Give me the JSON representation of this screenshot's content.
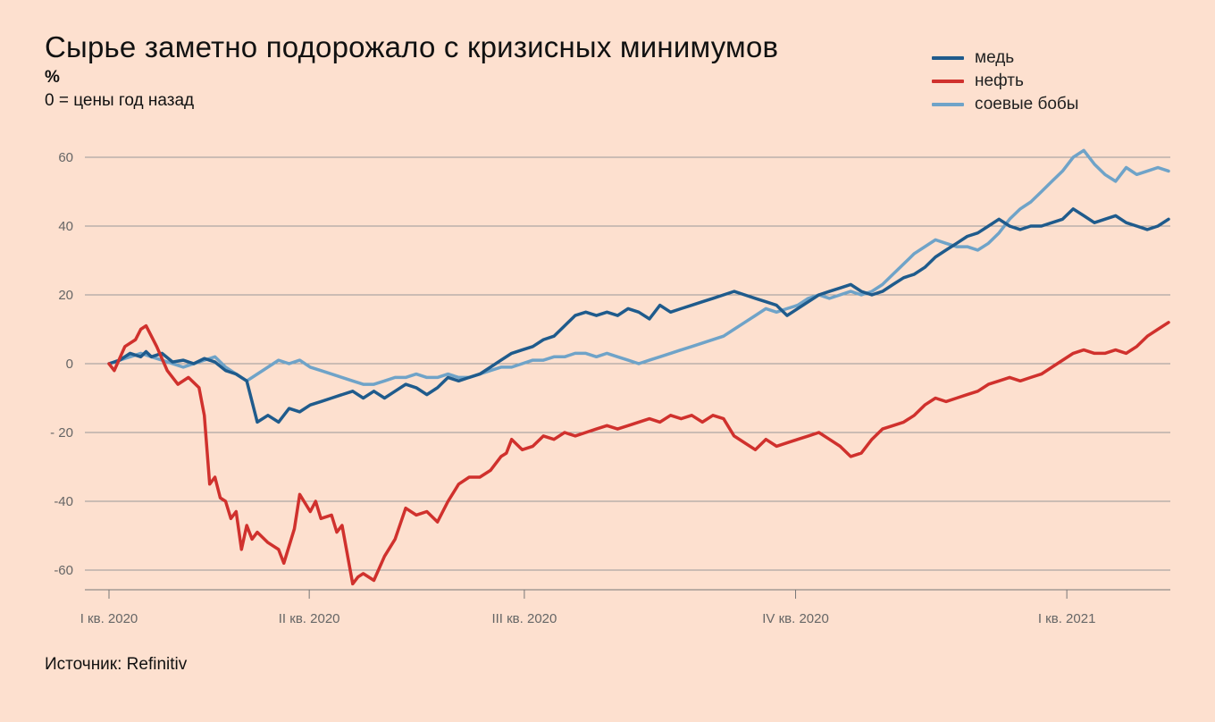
{
  "header": {
    "title": "Сырье заметно подорожало с кризисных минимумов",
    "unit": "%",
    "subtitle": "0 = цены год назад"
  },
  "footer": {
    "source": "Источник: Refinitiv"
  },
  "chart_data": {
    "type": "line",
    "title": "Сырье заметно подорожало с кризисных минимумов",
    "ylabel": "%",
    "ylim": [
      -67,
      68
    ],
    "yticks": [
      60,
      40,
      20,
      0,
      -20,
      -40,
      -60
    ],
    "ytick_labels": [
      "60",
      "40",
      "20",
      "0",
      "- 20",
      "-40",
      "-60"
    ],
    "xlim": [
      0,
      1.0
    ],
    "xticks": [
      {
        "x": 0.0,
        "label": "I кв. 2020"
      },
      {
        "x": 0.189,
        "label": "II кв. 2020"
      },
      {
        "x": 0.392,
        "label": "III кв. 2020"
      },
      {
        "x": 0.648,
        "label": "IV кв. 2020"
      },
      {
        "x": 0.904,
        "label": "I кв. 2021"
      }
    ],
    "grid": true,
    "legend": "top-right",
    "series": [
      {
        "name": "медь",
        "color": "#1f5b8c",
        "points": [
          [
            0,
            0
          ],
          [
            0.01,
            1
          ],
          [
            0.02,
            3
          ],
          [
            0.03,
            2
          ],
          [
            0.035,
            3.5
          ],
          [
            0.04,
            2
          ],
          [
            0.05,
            3
          ],
          [
            0.06,
            0.5
          ],
          [
            0.07,
            1
          ],
          [
            0.08,
            0
          ],
          [
            0.09,
            1.5
          ],
          [
            0.1,
            0.5
          ],
          [
            0.11,
            -2
          ],
          [
            0.12,
            -3
          ],
          [
            0.13,
            -5
          ],
          [
            0.14,
            -17
          ],
          [
            0.15,
            -15
          ],
          [
            0.16,
            -17
          ],
          [
            0.17,
            -13
          ],
          [
            0.18,
            -14
          ],
          [
            0.19,
            -12
          ],
          [
            0.2,
            -11
          ],
          [
            0.21,
            -10
          ],
          [
            0.22,
            -9
          ],
          [
            0.23,
            -8
          ],
          [
            0.24,
            -10
          ],
          [
            0.25,
            -8
          ],
          [
            0.26,
            -10
          ],
          [
            0.27,
            -8
          ],
          [
            0.28,
            -6
          ],
          [
            0.29,
            -7
          ],
          [
            0.3,
            -9
          ],
          [
            0.31,
            -7
          ],
          [
            0.32,
            -4
          ],
          [
            0.33,
            -5
          ],
          [
            0.34,
            -4
          ],
          [
            0.35,
            -3
          ],
          [
            0.36,
            -1
          ],
          [
            0.37,
            1
          ],
          [
            0.38,
            3
          ],
          [
            0.39,
            4
          ],
          [
            0.4,
            5
          ],
          [
            0.41,
            7
          ],
          [
            0.42,
            8
          ],
          [
            0.43,
            11
          ],
          [
            0.44,
            14
          ],
          [
            0.45,
            15
          ],
          [
            0.46,
            14
          ],
          [
            0.47,
            15
          ],
          [
            0.48,
            14
          ],
          [
            0.49,
            16
          ],
          [
            0.5,
            15
          ],
          [
            0.51,
            13
          ],
          [
            0.52,
            17
          ],
          [
            0.53,
            15
          ],
          [
            0.54,
            16
          ],
          [
            0.55,
            17
          ],
          [
            0.56,
            18
          ],
          [
            0.57,
            19
          ],
          [
            0.58,
            20
          ],
          [
            0.59,
            21
          ],
          [
            0.6,
            20
          ],
          [
            0.61,
            19
          ],
          [
            0.62,
            18
          ],
          [
            0.63,
            17
          ],
          [
            0.64,
            14
          ],
          [
            0.65,
            16
          ],
          [
            0.66,
            18
          ],
          [
            0.67,
            20
          ],
          [
            0.68,
            21
          ],
          [
            0.69,
            22
          ],
          [
            0.7,
            23
          ],
          [
            0.71,
            21
          ],
          [
            0.72,
            20
          ],
          [
            0.73,
            21
          ],
          [
            0.74,
            23
          ],
          [
            0.75,
            25
          ],
          [
            0.76,
            26
          ],
          [
            0.77,
            28
          ],
          [
            0.78,
            31
          ],
          [
            0.79,
            33
          ],
          [
            0.8,
            35
          ],
          [
            0.81,
            37
          ],
          [
            0.82,
            38
          ],
          [
            0.83,
            40
          ],
          [
            0.84,
            42
          ],
          [
            0.85,
            40
          ],
          [
            0.86,
            39
          ],
          [
            0.87,
            40
          ],
          [
            0.88,
            40
          ],
          [
            0.89,
            41
          ],
          [
            0.9,
            42
          ],
          [
            0.91,
            45
          ],
          [
            0.92,
            43
          ],
          [
            0.93,
            41
          ],
          [
            0.94,
            42
          ],
          [
            0.95,
            43
          ],
          [
            0.96,
            41
          ],
          [
            0.97,
            40
          ],
          [
            0.98,
            39
          ],
          [
            0.99,
            40
          ],
          [
            1.0,
            42
          ]
        ]
      },
      {
        "name": "нефть",
        "color": "#d0312d",
        "points": [
          [
            0,
            0
          ],
          [
            0.005,
            -2
          ],
          [
            0.015,
            5
          ],
          [
            0.025,
            7
          ],
          [
            0.03,
            10
          ],
          [
            0.035,
            11
          ],
          [
            0.045,
            5
          ],
          [
            0.055,
            -2
          ],
          [
            0.065,
            -6
          ],
          [
            0.075,
            -4
          ],
          [
            0.085,
            -7
          ],
          [
            0.09,
            -15
          ],
          [
            0.095,
            -35
          ],
          [
            0.1,
            -33
          ],
          [
            0.105,
            -39
          ],
          [
            0.11,
            -40
          ],
          [
            0.115,
            -45
          ],
          [
            0.12,
            -43
          ],
          [
            0.125,
            -54
          ],
          [
            0.13,
            -47
          ],
          [
            0.135,
            -51
          ],
          [
            0.14,
            -49
          ],
          [
            0.15,
            -52
          ],
          [
            0.16,
            -54
          ],
          [
            0.165,
            -58
          ],
          [
            0.175,
            -48
          ],
          [
            0.18,
            -38
          ],
          [
            0.19,
            -43
          ],
          [
            0.195,
            -40
          ],
          [
            0.2,
            -45
          ],
          [
            0.21,
            -44
          ],
          [
            0.215,
            -49
          ],
          [
            0.22,
            -47
          ],
          [
            0.23,
            -64
          ],
          [
            0.235,
            -62
          ],
          [
            0.24,
            -61
          ],
          [
            0.25,
            -63
          ],
          [
            0.26,
            -56
          ],
          [
            0.27,
            -51
          ],
          [
            0.28,
            -42
          ],
          [
            0.29,
            -44
          ],
          [
            0.3,
            -43
          ],
          [
            0.31,
            -46
          ],
          [
            0.32,
            -40
          ],
          [
            0.33,
            -35
          ],
          [
            0.34,
            -33
          ],
          [
            0.35,
            -33
          ],
          [
            0.36,
            -31
          ],
          [
            0.37,
            -27
          ],
          [
            0.375,
            -26
          ],
          [
            0.38,
            -22
          ],
          [
            0.39,
            -25
          ],
          [
            0.4,
            -24
          ],
          [
            0.41,
            -21
          ],
          [
            0.42,
            -22
          ],
          [
            0.43,
            -20
          ],
          [
            0.44,
            -21
          ],
          [
            0.45,
            -20
          ],
          [
            0.46,
            -19
          ],
          [
            0.47,
            -18
          ],
          [
            0.48,
            -19
          ],
          [
            0.49,
            -18
          ],
          [
            0.5,
            -17
          ],
          [
            0.51,
            -16
          ],
          [
            0.52,
            -17
          ],
          [
            0.53,
            -15
          ],
          [
            0.54,
            -16
          ],
          [
            0.55,
            -15
          ],
          [
            0.56,
            -17
          ],
          [
            0.57,
            -15
          ],
          [
            0.58,
            -16
          ],
          [
            0.59,
            -21
          ],
          [
            0.6,
            -23
          ],
          [
            0.61,
            -25
          ],
          [
            0.62,
            -22
          ],
          [
            0.63,
            -24
          ],
          [
            0.64,
            -23
          ],
          [
            0.65,
            -22
          ],
          [
            0.66,
            -21
          ],
          [
            0.67,
            -20
          ],
          [
            0.68,
            -22
          ],
          [
            0.69,
            -24
          ],
          [
            0.7,
            -27
          ],
          [
            0.71,
            -26
          ],
          [
            0.72,
            -22
          ],
          [
            0.73,
            -19
          ],
          [
            0.74,
            -18
          ],
          [
            0.75,
            -17
          ],
          [
            0.76,
            -15
          ],
          [
            0.77,
            -12
          ],
          [
            0.78,
            -10
          ],
          [
            0.79,
            -11
          ],
          [
            0.8,
            -10
          ],
          [
            0.81,
            -9
          ],
          [
            0.82,
            -8
          ],
          [
            0.83,
            -6
          ],
          [
            0.84,
            -5
          ],
          [
            0.85,
            -4
          ],
          [
            0.86,
            -5
          ],
          [
            0.87,
            -4
          ],
          [
            0.88,
            -3
          ],
          [
            0.89,
            -1
          ],
          [
            0.9,
            1
          ],
          [
            0.91,
            3
          ],
          [
            0.92,
            4
          ],
          [
            0.93,
            3
          ],
          [
            0.94,
            3
          ],
          [
            0.95,
            4
          ],
          [
            0.96,
            3
          ],
          [
            0.97,
            5
          ],
          [
            0.98,
            8
          ],
          [
            0.99,
            10
          ],
          [
            1.0,
            12
          ]
        ]
      },
      {
        "name": "соевые бобы",
        "color": "#6fa3c8",
        "points": [
          [
            0,
            0
          ],
          [
            0.01,
            1
          ],
          [
            0.02,
            2
          ],
          [
            0.03,
            3
          ],
          [
            0.04,
            2
          ],
          [
            0.05,
            1
          ],
          [
            0.06,
            0
          ],
          [
            0.07,
            -1
          ],
          [
            0.08,
            0
          ],
          [
            0.09,
            1
          ],
          [
            0.1,
            2
          ],
          [
            0.11,
            -1
          ],
          [
            0.12,
            -3
          ],
          [
            0.13,
            -5
          ],
          [
            0.14,
            -3
          ],
          [
            0.15,
            -1
          ],
          [
            0.16,
            1
          ],
          [
            0.17,
            0
          ],
          [
            0.18,
            1
          ],
          [
            0.19,
            -1
          ],
          [
            0.2,
            -2
          ],
          [
            0.21,
            -3
          ],
          [
            0.22,
            -4
          ],
          [
            0.23,
            -5
          ],
          [
            0.24,
            -6
          ],
          [
            0.25,
            -6
          ],
          [
            0.26,
            -5
          ],
          [
            0.27,
            -4
          ],
          [
            0.28,
            -4
          ],
          [
            0.29,
            -3
          ],
          [
            0.3,
            -4
          ],
          [
            0.31,
            -4
          ],
          [
            0.32,
            -3
          ],
          [
            0.33,
            -4
          ],
          [
            0.34,
            -4
          ],
          [
            0.35,
            -3
          ],
          [
            0.36,
            -2
          ],
          [
            0.37,
            -1
          ],
          [
            0.38,
            -1
          ],
          [
            0.39,
            0
          ],
          [
            0.4,
            1
          ],
          [
            0.41,
            1
          ],
          [
            0.42,
            2
          ],
          [
            0.43,
            2
          ],
          [
            0.44,
            3
          ],
          [
            0.45,
            3
          ],
          [
            0.46,
            2
          ],
          [
            0.47,
            3
          ],
          [
            0.48,
            2
          ],
          [
            0.49,
            1
          ],
          [
            0.5,
            0
          ],
          [
            0.51,
            1
          ],
          [
            0.52,
            2
          ],
          [
            0.53,
            3
          ],
          [
            0.54,
            4
          ],
          [
            0.55,
            5
          ],
          [
            0.56,
            6
          ],
          [
            0.57,
            7
          ],
          [
            0.58,
            8
          ],
          [
            0.59,
            10
          ],
          [
            0.6,
            12
          ],
          [
            0.61,
            14
          ],
          [
            0.62,
            16
          ],
          [
            0.63,
            15
          ],
          [
            0.64,
            16
          ],
          [
            0.65,
            17
          ],
          [
            0.66,
            19
          ],
          [
            0.67,
            20
          ],
          [
            0.68,
            19
          ],
          [
            0.69,
            20
          ],
          [
            0.7,
            21
          ],
          [
            0.71,
            20
          ],
          [
            0.72,
            21
          ],
          [
            0.73,
            23
          ],
          [
            0.74,
            26
          ],
          [
            0.75,
            29
          ],
          [
            0.76,
            32
          ],
          [
            0.77,
            34
          ],
          [
            0.78,
            36
          ],
          [
            0.79,
            35
          ],
          [
            0.8,
            34
          ],
          [
            0.81,
            34
          ],
          [
            0.82,
            33
          ],
          [
            0.83,
            35
          ],
          [
            0.84,
            38
          ],
          [
            0.85,
            42
          ],
          [
            0.86,
            45
          ],
          [
            0.87,
            47
          ],
          [
            0.88,
            50
          ],
          [
            0.89,
            53
          ],
          [
            0.9,
            56
          ],
          [
            0.91,
            60
          ],
          [
            0.92,
            62
          ],
          [
            0.93,
            58
          ],
          [
            0.94,
            55
          ],
          [
            0.95,
            53
          ],
          [
            0.96,
            57
          ],
          [
            0.97,
            55
          ],
          [
            0.98,
            56
          ],
          [
            0.99,
            57
          ],
          [
            1.0,
            56
          ]
        ]
      }
    ]
  }
}
